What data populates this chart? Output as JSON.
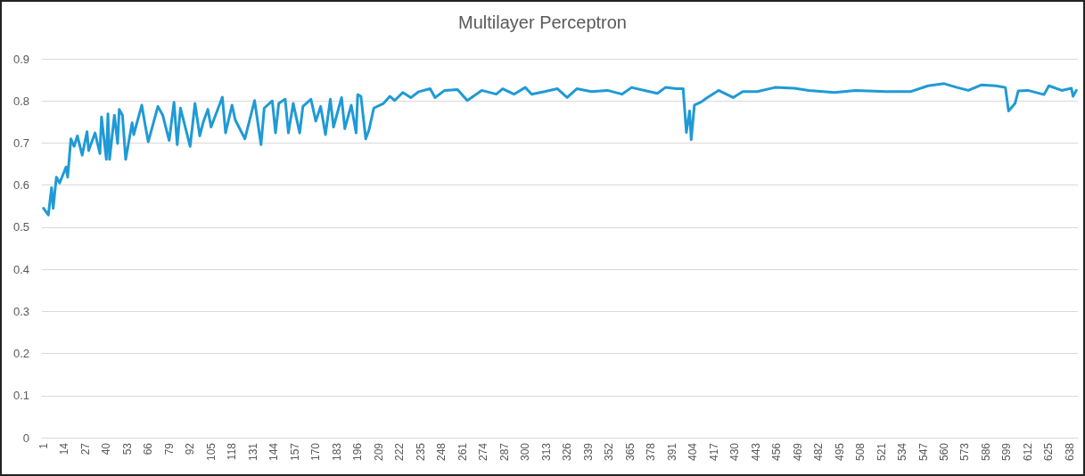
{
  "chart_data": {
    "type": "line",
    "title": "Multilayer Perceptron",
    "x": [
      1,
      4,
      6,
      7,
      9,
      11,
      15,
      16,
      18,
      20,
      22,
      25,
      28,
      29,
      33,
      36,
      37,
      40,
      41,
      42,
      45,
      47,
      48,
      50,
      52,
      56,
      57,
      62,
      64,
      66,
      72,
      75,
      79,
      82,
      84,
      86,
      92,
      95,
      98,
      100,
      103,
      105,
      112,
      114,
      118,
      120,
      126,
      132,
      136,
      138,
      143,
      145,
      147,
      151,
      153,
      156,
      160,
      162,
      167,
      170,
      173,
      176,
      179,
      181,
      186,
      188,
      192,
      195,
      196,
      198,
      201,
      203,
      206,
      212,
      216,
      219,
      224,
      229,
      234,
      241,
      244,
      250,
      258,
      264,
      273,
      282,
      286,
      293,
      300,
      304,
      312,
      320,
      326,
      332,
      341,
      351,
      360,
      366,
      374,
      382,
      387,
      394,
      398,
      400,
      402,
      403,
      405,
      409,
      413,
      420,
      429,
      435,
      444,
      455,
      467,
      476,
      492,
      505,
      524,
      539,
      550,
      560,
      568,
      575,
      583,
      592,
      598,
      600,
      604,
      606,
      612,
      622,
      625,
      633,
      639,
      640,
      642
    ],
    "series": [
      {
        "color": "#1f9ad6",
        "values": [
          0.545,
          0.529,
          0.594,
          0.545,
          0.619,
          0.605,
          0.643,
          0.619,
          0.71,
          0.692,
          0.717,
          0.671,
          0.727,
          0.682,
          0.724,
          0.675,
          0.762,
          0.661,
          0.769,
          0.661,
          0.766,
          0.699,
          0.78,
          0.766,
          0.661,
          0.748,
          0.72,
          0.79,
          0.745,
          0.703,
          0.787,
          0.766,
          0.706,
          0.797,
          0.696,
          0.783,
          0.692,
          0.794,
          0.717,
          0.748,
          0.78,
          0.738,
          0.809,
          0.724,
          0.79,
          0.755,
          0.71,
          0.801,
          0.696,
          0.783,
          0.8,
          0.724,
          0.794,
          0.804,
          0.724,
          0.794,
          0.724,
          0.787,
          0.804,
          0.752,
          0.787,
          0.72,
          0.804,
          0.738,
          0.808,
          0.734,
          0.79,
          0.724,
          0.815,
          0.811,
          0.71,
          0.731,
          0.783,
          0.794,
          0.811,
          0.801,
          0.82,
          0.808,
          0.822,
          0.829,
          0.808,
          0.825,
          0.827,
          0.801,
          0.825,
          0.816,
          0.829,
          0.816,
          0.832,
          0.816,
          0.822,
          0.829,
          0.808,
          0.829,
          0.822,
          0.825,
          0.816,
          0.832,
          0.825,
          0.818,
          0.832,
          0.829,
          0.829,
          0.725,
          0.776,
          0.708,
          0.79,
          0.797,
          0.808,
          0.825,
          0.808,
          0.822,
          0.822,
          0.832,
          0.83,
          0.825,
          0.82,
          0.825,
          0.822,
          0.822,
          0.836,
          0.841,
          0.832,
          0.825,
          0.838,
          0.836,
          0.832,
          0.776,
          0.794,
          0.824,
          0.825,
          0.815,
          0.836,
          0.825,
          0.83,
          0.811,
          0.825
        ]
      }
    ],
    "xlim": [
      0,
      643
    ],
    "xticks": [
      1,
      14,
      27,
      40,
      53,
      66,
      79,
      92,
      105,
      118,
      131,
      144,
      157,
      170,
      183,
      196,
      209,
      222,
      235,
      248,
      261,
      274,
      287,
      300,
      313,
      326,
      339,
      352,
      365,
      378,
      391,
      404,
      417,
      430,
      443,
      456,
      469,
      482,
      495,
      508,
      521,
      534,
      547,
      560,
      573,
      586,
      599,
      612,
      625,
      638
    ],
    "ylim": [
      0,
      0.9
    ],
    "yticks": [
      0,
      0.1,
      0.2,
      0.3,
      0.4,
      0.5,
      0.6,
      0.7,
      0.8,
      0.9
    ],
    "grid": "y",
    "marker": "none",
    "line_style": "solid"
  }
}
